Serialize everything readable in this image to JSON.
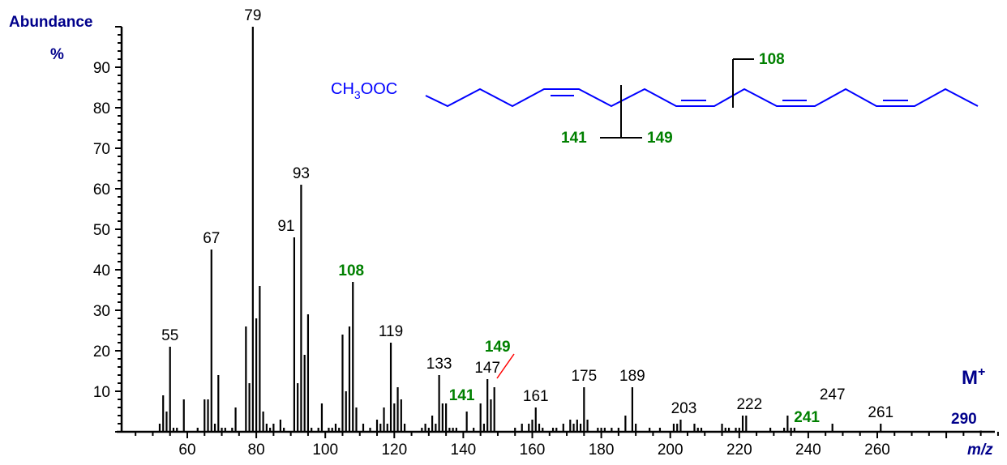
{
  "chart_data": {
    "type": "bar",
    "title": "",
    "xlabel": "m/z",
    "ylabel": "Abundance %",
    "xlim": [
      42,
      298
    ],
    "ylim": [
      0,
      100
    ],
    "x_ticks": [
      60,
      80,
      100,
      120,
      140,
      160,
      180,
      200,
      220,
      240,
      260
    ],
    "y_ticks": [
      10,
      20,
      30,
      40,
      50,
      60,
      70,
      80,
      90
    ],
    "peaks": [
      {
        "mz": 52,
        "ab": 2
      },
      {
        "mz": 53,
        "ab": 9
      },
      {
        "mz": 54,
        "ab": 5
      },
      {
        "mz": 55,
        "ab": 21
      },
      {
        "mz": 56,
        "ab": 1
      },
      {
        "mz": 57,
        "ab": 1
      },
      {
        "mz": 59,
        "ab": 8
      },
      {
        "mz": 63,
        "ab": 1
      },
      {
        "mz": 65,
        "ab": 8
      },
      {
        "mz": 66,
        "ab": 8
      },
      {
        "mz": 67,
        "ab": 45
      },
      {
        "mz": 68,
        "ab": 2
      },
      {
        "mz": 69,
        "ab": 14
      },
      {
        "mz": 70,
        "ab": 1
      },
      {
        "mz": 71,
        "ab": 1
      },
      {
        "mz": 73,
        "ab": 1
      },
      {
        "mz": 74,
        "ab": 6
      },
      {
        "mz": 77,
        "ab": 26
      },
      {
        "mz": 78,
        "ab": 12
      },
      {
        "mz": 79,
        "ab": 100
      },
      {
        "mz": 80,
        "ab": 28
      },
      {
        "mz": 81,
        "ab": 36
      },
      {
        "mz": 82,
        "ab": 5
      },
      {
        "mz": 83,
        "ab": 2
      },
      {
        "mz": 84,
        "ab": 1
      },
      {
        "mz": 85,
        "ab": 2
      },
      {
        "mz": 87,
        "ab": 3
      },
      {
        "mz": 88,
        "ab": 1
      },
      {
        "mz": 91,
        "ab": 48
      },
      {
        "mz": 92,
        "ab": 12
      },
      {
        "mz": 93,
        "ab": 61
      },
      {
        "mz": 94,
        "ab": 19
      },
      {
        "mz": 95,
        "ab": 29
      },
      {
        "mz": 96,
        "ab": 1
      },
      {
        "mz": 98,
        "ab": 1
      },
      {
        "mz": 99,
        "ab": 7
      },
      {
        "mz": 101,
        "ab": 1
      },
      {
        "mz": 102,
        "ab": 1
      },
      {
        "mz": 103,
        "ab": 2
      },
      {
        "mz": 104,
        "ab": 1
      },
      {
        "mz": 105,
        "ab": 24
      },
      {
        "mz": 106,
        "ab": 10
      },
      {
        "mz": 107,
        "ab": 26
      },
      {
        "mz": 108,
        "ab": 37
      },
      {
        "mz": 109,
        "ab": 6
      },
      {
        "mz": 111,
        "ab": 2
      },
      {
        "mz": 113,
        "ab": 1
      },
      {
        "mz": 115,
        "ab": 3
      },
      {
        "mz": 116,
        "ab": 2
      },
      {
        "mz": 117,
        "ab": 6
      },
      {
        "mz": 118,
        "ab": 2
      },
      {
        "mz": 119,
        "ab": 22
      },
      {
        "mz": 120,
        "ab": 7
      },
      {
        "mz": 121,
        "ab": 11
      },
      {
        "mz": 122,
        "ab": 8
      },
      {
        "mz": 123,
        "ab": 2
      },
      {
        "mz": 128,
        "ab": 1
      },
      {
        "mz": 129,
        "ab": 2
      },
      {
        "mz": 130,
        "ab": 1
      },
      {
        "mz": 131,
        "ab": 4
      },
      {
        "mz": 132,
        "ab": 2
      },
      {
        "mz": 133,
        "ab": 14
      },
      {
        "mz": 134,
        "ab": 7
      },
      {
        "mz": 135,
        "ab": 7
      },
      {
        "mz": 136,
        "ab": 1
      },
      {
        "mz": 137,
        "ab": 1
      },
      {
        "mz": 138,
        "ab": 1
      },
      {
        "mz": 141,
        "ab": 5
      },
      {
        "mz": 143,
        "ab": 1
      },
      {
        "mz": 145,
        "ab": 7
      },
      {
        "mz": 146,
        "ab": 2
      },
      {
        "mz": 147,
        "ab": 13
      },
      {
        "mz": 148,
        "ab": 8
      },
      {
        "mz": 149,
        "ab": 11
      },
      {
        "mz": 155,
        "ab": 1
      },
      {
        "mz": 157,
        "ab": 2
      },
      {
        "mz": 159,
        "ab": 2
      },
      {
        "mz": 160,
        "ab": 3
      },
      {
        "mz": 161,
        "ab": 6
      },
      {
        "mz": 162,
        "ab": 2
      },
      {
        "mz": 163,
        "ab": 1
      },
      {
        "mz": 166,
        "ab": 1
      },
      {
        "mz": 167,
        "ab": 1
      },
      {
        "mz": 169,
        "ab": 2
      },
      {
        "mz": 171,
        "ab": 3
      },
      {
        "mz": 172,
        "ab": 2
      },
      {
        "mz": 173,
        "ab": 3
      },
      {
        "mz": 174,
        "ab": 2
      },
      {
        "mz": 175,
        "ab": 11
      },
      {
        "mz": 176,
        "ab": 3
      },
      {
        "mz": 179,
        "ab": 1
      },
      {
        "mz": 180,
        "ab": 1
      },
      {
        "mz": 181,
        "ab": 1
      },
      {
        "mz": 183,
        "ab": 1
      },
      {
        "mz": 185,
        "ab": 1
      },
      {
        "mz": 187,
        "ab": 4
      },
      {
        "mz": 189,
        "ab": 11
      },
      {
        "mz": 190,
        "ab": 2
      },
      {
        "mz": 194,
        "ab": 1
      },
      {
        "mz": 197,
        "ab": 1
      },
      {
        "mz": 201,
        "ab": 2
      },
      {
        "mz": 202,
        "ab": 2
      },
      {
        "mz": 203,
        "ab": 3
      },
      {
        "mz": 207,
        "ab": 2
      },
      {
        "mz": 208,
        "ab": 1
      },
      {
        "mz": 209,
        "ab": 1
      },
      {
        "mz": 215,
        "ab": 2
      },
      {
        "mz": 216,
        "ab": 1
      },
      {
        "mz": 217,
        "ab": 1
      },
      {
        "mz": 219,
        "ab": 1
      },
      {
        "mz": 220,
        "ab": 1
      },
      {
        "mz": 221,
        "ab": 4
      },
      {
        "mz": 222,
        "ab": 4
      },
      {
        "mz": 229,
        "ab": 1
      },
      {
        "mz": 233,
        "ab": 1
      },
      {
        "mz": 234,
        "ab": 4
      },
      {
        "mz": 235,
        "ab": 1
      },
      {
        "mz": 236,
        "ab": 1
      },
      {
        "mz": 247,
        "ab": 2
      },
      {
        "mz": 261,
        "ab": 2
      },
      {
        "mz": 290,
        "ab": 0.3
      }
    ],
    "labels": [
      {
        "mz": 55,
        "text": "55",
        "color": "black"
      },
      {
        "mz": 67,
        "text": "67",
        "color": "black"
      },
      {
        "mz": 79,
        "text": "79",
        "color": "black"
      },
      {
        "mz": 91,
        "text": "91",
        "color": "black"
      },
      {
        "mz": 93,
        "text": "93",
        "color": "black"
      },
      {
        "mz": 108,
        "text": "108",
        "color": "green"
      },
      {
        "mz": 119,
        "text": "119",
        "color": "black"
      },
      {
        "mz": 133,
        "text": "133",
        "color": "black"
      },
      {
        "mz": 141,
        "text": "141",
        "color": "green"
      },
      {
        "mz": 147,
        "text": "147",
        "color": "black"
      },
      {
        "mz": 149,
        "text": "149",
        "color": "green"
      },
      {
        "mz": 161,
        "text": "161",
        "color": "black"
      },
      {
        "mz": 175,
        "text": "175",
        "color": "black"
      },
      {
        "mz": 189,
        "text": "189",
        "color": "black"
      },
      {
        "mz": 203,
        "text": "203",
        "color": "black"
      },
      {
        "mz": 222,
        "text": "222",
        "color": "black"
      },
      {
        "mz": 241,
        "text": "241",
        "color": "green"
      },
      {
        "mz": 247,
        "text": "247",
        "color": "black"
      },
      {
        "mz": 261,
        "text": "261",
        "color": "black"
      }
    ],
    "annotations": {
      "molecular_ion_label": "M+",
      "molecular_ion_mz": "290",
      "structure_prefix": "CH3OOC",
      "fragments": [
        "108",
        "141",
        "149"
      ]
    }
  },
  "axis": {
    "ylabel_line1": "Abundance",
    "ylabel_line2": "%",
    "xlabel": "m/z"
  },
  "colors": {
    "peak": "#000000",
    "label_green": "#008000",
    "axis_title": "#00008b",
    "structure": "#0000ff",
    "pointer": "#ff0000"
  }
}
